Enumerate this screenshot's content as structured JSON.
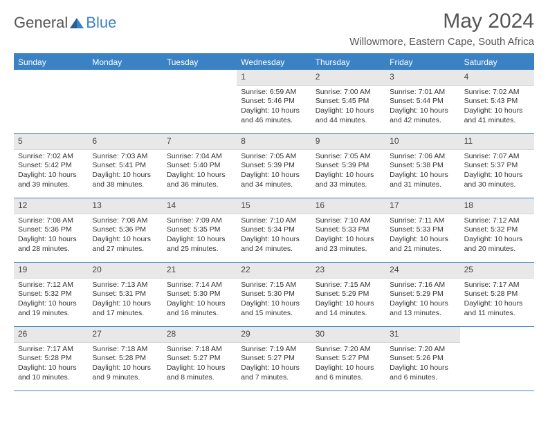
{
  "logo": {
    "text1": "General",
    "text2": "Blue"
  },
  "title": "May 2024",
  "location": "Willowmore, Eastern Cape, South Africa",
  "colors": {
    "accent": "#3b82c4",
    "header_bg": "#e8e8e8",
    "text": "#333333",
    "background": "#ffffff"
  },
  "dayHeaders": [
    "Sunday",
    "Monday",
    "Tuesday",
    "Wednesday",
    "Thursday",
    "Friday",
    "Saturday"
  ],
  "weeks": [
    [
      {
        "num": "",
        "sunrise": "",
        "sunset": "",
        "daylight": ""
      },
      {
        "num": "",
        "sunrise": "",
        "sunset": "",
        "daylight": ""
      },
      {
        "num": "",
        "sunrise": "",
        "sunset": "",
        "daylight": ""
      },
      {
        "num": "1",
        "sunrise": "Sunrise: 6:59 AM",
        "sunset": "Sunset: 5:46 PM",
        "daylight": "Daylight: 10 hours and 46 minutes."
      },
      {
        "num": "2",
        "sunrise": "Sunrise: 7:00 AM",
        "sunset": "Sunset: 5:45 PM",
        "daylight": "Daylight: 10 hours and 44 minutes."
      },
      {
        "num": "3",
        "sunrise": "Sunrise: 7:01 AM",
        "sunset": "Sunset: 5:44 PM",
        "daylight": "Daylight: 10 hours and 42 minutes."
      },
      {
        "num": "4",
        "sunrise": "Sunrise: 7:02 AM",
        "sunset": "Sunset: 5:43 PM",
        "daylight": "Daylight: 10 hours and 41 minutes."
      }
    ],
    [
      {
        "num": "5",
        "sunrise": "Sunrise: 7:02 AM",
        "sunset": "Sunset: 5:42 PM",
        "daylight": "Daylight: 10 hours and 39 minutes."
      },
      {
        "num": "6",
        "sunrise": "Sunrise: 7:03 AM",
        "sunset": "Sunset: 5:41 PM",
        "daylight": "Daylight: 10 hours and 38 minutes."
      },
      {
        "num": "7",
        "sunrise": "Sunrise: 7:04 AM",
        "sunset": "Sunset: 5:40 PM",
        "daylight": "Daylight: 10 hours and 36 minutes."
      },
      {
        "num": "8",
        "sunrise": "Sunrise: 7:05 AM",
        "sunset": "Sunset: 5:39 PM",
        "daylight": "Daylight: 10 hours and 34 minutes."
      },
      {
        "num": "9",
        "sunrise": "Sunrise: 7:05 AM",
        "sunset": "Sunset: 5:39 PM",
        "daylight": "Daylight: 10 hours and 33 minutes."
      },
      {
        "num": "10",
        "sunrise": "Sunrise: 7:06 AM",
        "sunset": "Sunset: 5:38 PM",
        "daylight": "Daylight: 10 hours and 31 minutes."
      },
      {
        "num": "11",
        "sunrise": "Sunrise: 7:07 AM",
        "sunset": "Sunset: 5:37 PM",
        "daylight": "Daylight: 10 hours and 30 minutes."
      }
    ],
    [
      {
        "num": "12",
        "sunrise": "Sunrise: 7:08 AM",
        "sunset": "Sunset: 5:36 PM",
        "daylight": "Daylight: 10 hours and 28 minutes."
      },
      {
        "num": "13",
        "sunrise": "Sunrise: 7:08 AM",
        "sunset": "Sunset: 5:36 PM",
        "daylight": "Daylight: 10 hours and 27 minutes."
      },
      {
        "num": "14",
        "sunrise": "Sunrise: 7:09 AM",
        "sunset": "Sunset: 5:35 PM",
        "daylight": "Daylight: 10 hours and 25 minutes."
      },
      {
        "num": "15",
        "sunrise": "Sunrise: 7:10 AM",
        "sunset": "Sunset: 5:34 PM",
        "daylight": "Daylight: 10 hours and 24 minutes."
      },
      {
        "num": "16",
        "sunrise": "Sunrise: 7:10 AM",
        "sunset": "Sunset: 5:33 PM",
        "daylight": "Daylight: 10 hours and 23 minutes."
      },
      {
        "num": "17",
        "sunrise": "Sunrise: 7:11 AM",
        "sunset": "Sunset: 5:33 PM",
        "daylight": "Daylight: 10 hours and 21 minutes."
      },
      {
        "num": "18",
        "sunrise": "Sunrise: 7:12 AM",
        "sunset": "Sunset: 5:32 PM",
        "daylight": "Daylight: 10 hours and 20 minutes."
      }
    ],
    [
      {
        "num": "19",
        "sunrise": "Sunrise: 7:12 AM",
        "sunset": "Sunset: 5:32 PM",
        "daylight": "Daylight: 10 hours and 19 minutes."
      },
      {
        "num": "20",
        "sunrise": "Sunrise: 7:13 AM",
        "sunset": "Sunset: 5:31 PM",
        "daylight": "Daylight: 10 hours and 17 minutes."
      },
      {
        "num": "21",
        "sunrise": "Sunrise: 7:14 AM",
        "sunset": "Sunset: 5:30 PM",
        "daylight": "Daylight: 10 hours and 16 minutes."
      },
      {
        "num": "22",
        "sunrise": "Sunrise: 7:15 AM",
        "sunset": "Sunset: 5:30 PM",
        "daylight": "Daylight: 10 hours and 15 minutes."
      },
      {
        "num": "23",
        "sunrise": "Sunrise: 7:15 AM",
        "sunset": "Sunset: 5:29 PM",
        "daylight": "Daylight: 10 hours and 14 minutes."
      },
      {
        "num": "24",
        "sunrise": "Sunrise: 7:16 AM",
        "sunset": "Sunset: 5:29 PM",
        "daylight": "Daylight: 10 hours and 13 minutes."
      },
      {
        "num": "25",
        "sunrise": "Sunrise: 7:17 AM",
        "sunset": "Sunset: 5:28 PM",
        "daylight": "Daylight: 10 hours and 11 minutes."
      }
    ],
    [
      {
        "num": "26",
        "sunrise": "Sunrise: 7:17 AM",
        "sunset": "Sunset: 5:28 PM",
        "daylight": "Daylight: 10 hours and 10 minutes."
      },
      {
        "num": "27",
        "sunrise": "Sunrise: 7:18 AM",
        "sunset": "Sunset: 5:28 PM",
        "daylight": "Daylight: 10 hours and 9 minutes."
      },
      {
        "num": "28",
        "sunrise": "Sunrise: 7:18 AM",
        "sunset": "Sunset: 5:27 PM",
        "daylight": "Daylight: 10 hours and 8 minutes."
      },
      {
        "num": "29",
        "sunrise": "Sunrise: 7:19 AM",
        "sunset": "Sunset: 5:27 PM",
        "daylight": "Daylight: 10 hours and 7 minutes."
      },
      {
        "num": "30",
        "sunrise": "Sunrise: 7:20 AM",
        "sunset": "Sunset: 5:27 PM",
        "daylight": "Daylight: 10 hours and 6 minutes."
      },
      {
        "num": "31",
        "sunrise": "Sunrise: 7:20 AM",
        "sunset": "Sunset: 5:26 PM",
        "daylight": "Daylight: 10 hours and 6 minutes."
      },
      {
        "num": "",
        "sunrise": "",
        "sunset": "",
        "daylight": ""
      }
    ]
  ]
}
